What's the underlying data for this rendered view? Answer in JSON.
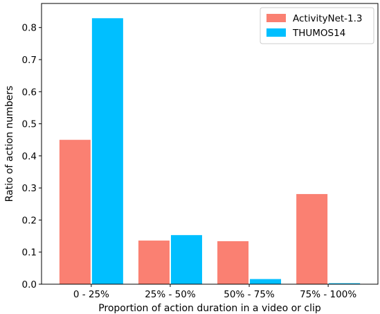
{
  "chart_data": {
    "type": "bar",
    "categories": [
      "0 - 25%",
      "25% - 50%",
      "50% - 75%",
      "75% - 100%"
    ],
    "series": [
      {
        "name": "ActivityNet-1.3",
        "values": [
          0.45,
          0.136,
          0.134,
          0.281
        ],
        "color": "#fa8072"
      },
      {
        "name": "THUMOS14",
        "values": [
          0.829,
          0.153,
          0.016,
          0.003
        ],
        "color": "#00bfff"
      }
    ],
    "title": "",
    "xlabel": "Proportion of action duration in a video or clip",
    "ylabel": "Ratio of action numbers",
    "ylim": [
      0,
      0.875
    ],
    "yticks": [
      0.0,
      0.1,
      0.2,
      0.3,
      0.4,
      0.5,
      0.6,
      0.7,
      0.8
    ],
    "ytick_labels": [
      "0.0",
      "0.1",
      "0.2",
      "0.3",
      "0.4",
      "0.5",
      "0.6",
      "0.7",
      "0.8"
    ],
    "grid": false,
    "legend_position": "top-right"
  }
}
